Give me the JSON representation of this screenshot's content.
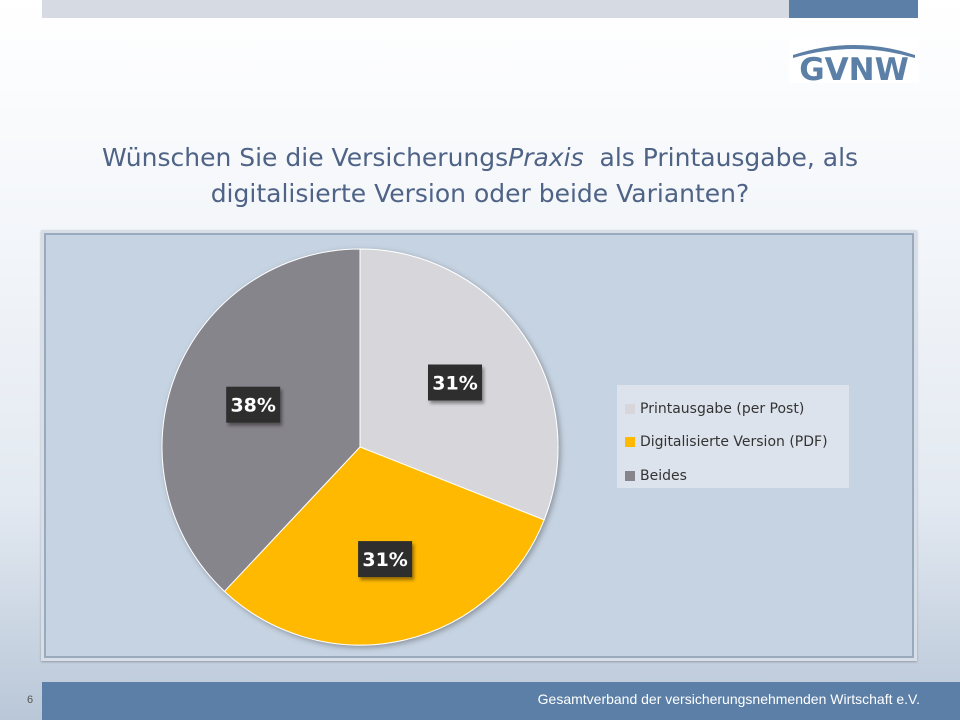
{
  "slide": {
    "title_line1_pre": "Wünschen Sie die Versicherungs",
    "title_line1_italic": "Praxis",
    "title_line1_post": "  als Printausgabe, als",
    "title_line2": "digitalisierte Version oder beide Varianten?",
    "logo_text": "GVNW",
    "footer_text": "Gesamtverband der versicherungsnehmenden Wirtschaft e.V.",
    "page_number": "6"
  },
  "colors": {
    "accent": "#5b7fa6",
    "title": "#4e6386"
  },
  "chart_data": {
    "type": "pie",
    "title": "",
    "start_angle_deg": 0,
    "direction": "clockwise",
    "legend_position": "right",
    "slices": [
      {
        "label": "Printausgabe (per Post)",
        "value": 31,
        "display": "31%",
        "color": "#d7d6db"
      },
      {
        "label": "Digitalisierte Version (PDF)",
        "value": 31,
        "display": "31%",
        "color": "#ffb900"
      },
      {
        "label": "Beides",
        "value": 38,
        "display": "38%",
        "color": "#87858c"
      }
    ]
  }
}
